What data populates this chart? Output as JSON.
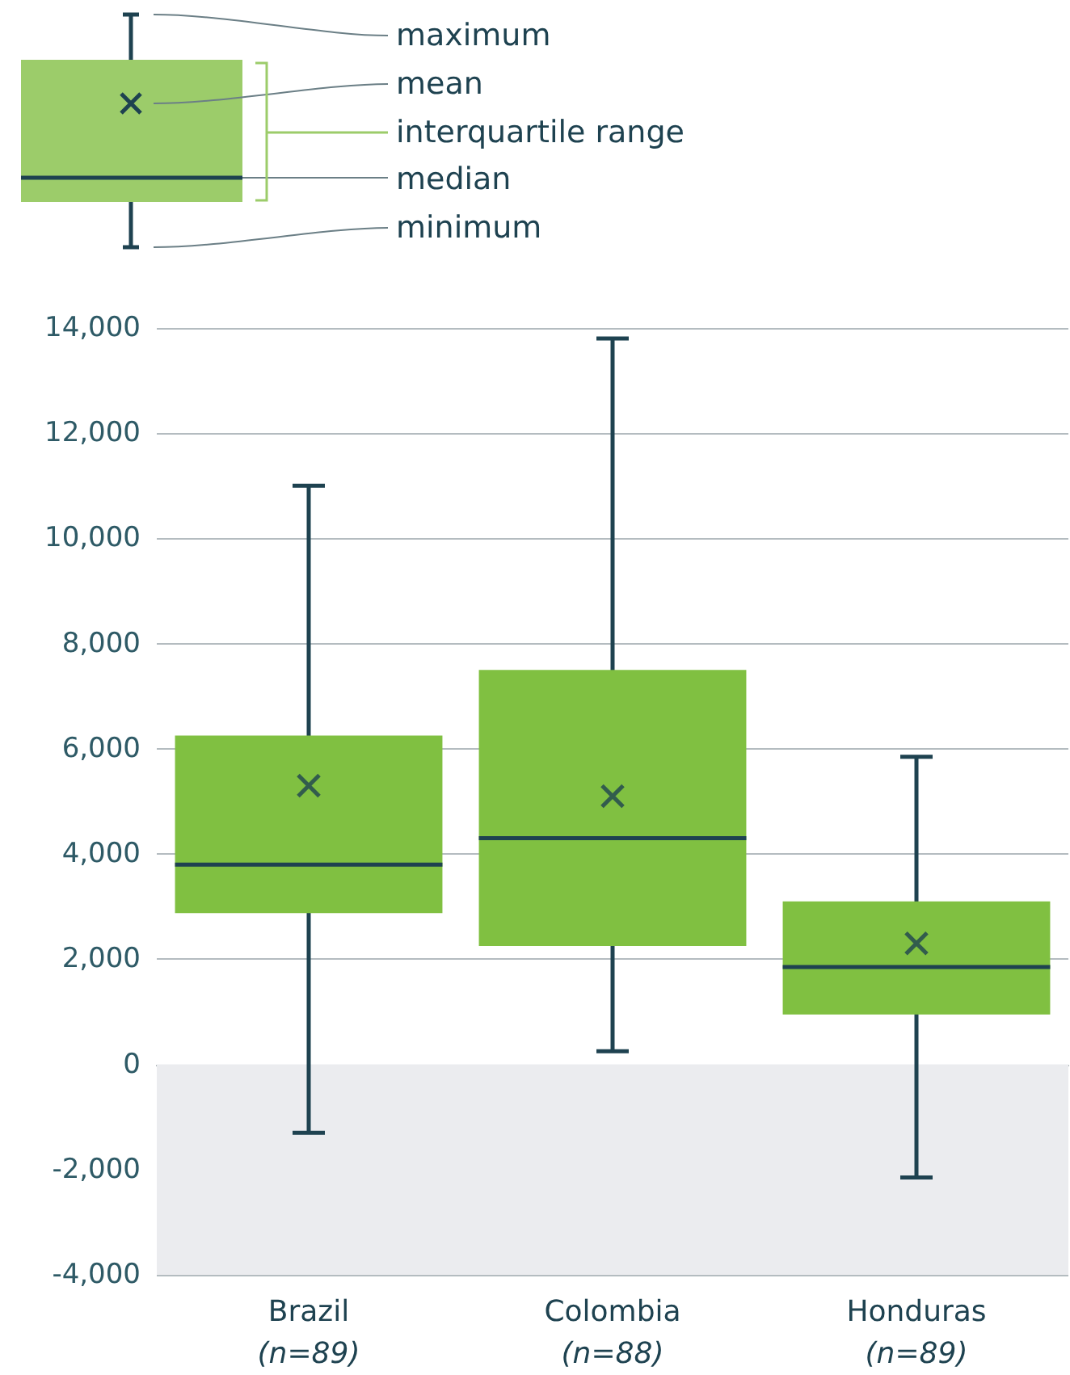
{
  "chart_data": {
    "type": "box",
    "categories": [
      "Brazil\n(n=89)",
      "Colombia\n(n=88)",
      "Honduras\n(n=89)"
    ],
    "boxes": [
      {
        "low": -1300,
        "q1": 2875,
        "median": 3800,
        "q3": 6250,
        "high": 11000,
        "mean": 5300
      },
      {
        "low": 250,
        "q1": 2250,
        "median": 4300,
        "q3": 7500,
        "high": 13800,
        "mean": 5100
      },
      {
        "low": -2150,
        "q1": 950,
        "median": 1850,
        "q3": 3100,
        "high": 5850,
        "mean": 2300
      }
    ],
    "color": "#80c041",
    "ylim": [
      -4000,
      14000
    ],
    "yticks": [
      {
        "value": -4000,
        "label": "-4,000"
      },
      {
        "value": -2000,
        "label": "-2,000"
      },
      0,
      {
        "value": 2000,
        "label": "2,000"
      },
      {
        "value": 4000,
        "label": "4,000"
      },
      {
        "value": 6000,
        "label": "6,000"
      },
      {
        "value": 8000,
        "label": "8,000"
      },
      {
        "value": 10000,
        "label": "10,000"
      },
      {
        "value": 12000,
        "label": "12,000"
      },
      {
        "value": 14000,
        "label": "14,000"
      }
    ],
    "grid": "y",
    "marker": "cross",
    "bands": [
      {
        "axis": "y",
        "from": -4000,
        "to": 0,
        "color": "#ebecef"
      }
    ],
    "annotations": [
      "maximum",
      "mean",
      "interquartile range",
      "median",
      "minimum"
    ]
  }
}
